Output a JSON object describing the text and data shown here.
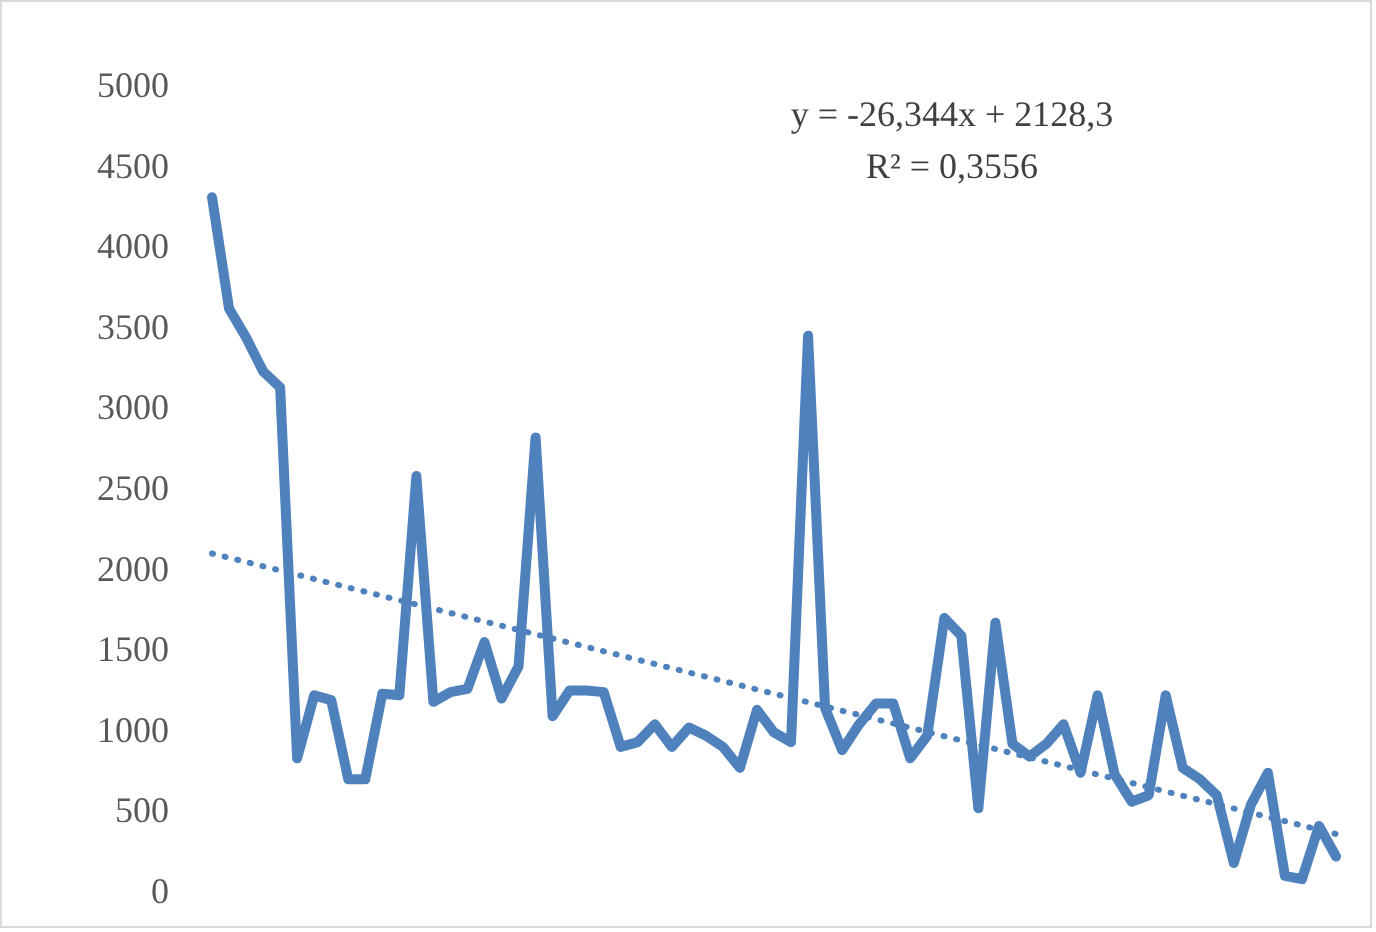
{
  "chart_data": {
    "type": "line",
    "categories": [
      null,
      null,
      null,
      null,
      null,
      null,
      null,
      null,
      null,
      null,
      null,
      null,
      null,
      null,
      null,
      null,
      null,
      null,
      null,
      null,
      null,
      null,
      null,
      null,
      null,
      null,
      null,
      null,
      null,
      null,
      null,
      null,
      null,
      null,
      null,
      null,
      null,
      null,
      null,
      null,
      null,
      null,
      null,
      null,
      null,
      null,
      null,
      null,
      null,
      null,
      null,
      null,
      null,
      null,
      null,
      null,
      null,
      null,
      null,
      null,
      null,
      null,
      null,
      null,
      null,
      null,
      null
    ],
    "series": [
      {
        "color": "#4f81bd",
        "line_style": "solid",
        "values": [
          4310,
          3620,
          3440,
          3230,
          3130,
          830,
          1220,
          1190,
          700,
          700,
          1230,
          1220,
          2580,
          1180,
          1240,
          1260,
          1550,
          1200,
          1400,
          2820,
          1090,
          1250,
          1250,
          1240,
          900,
          930,
          1040,
          900,
          1020,
          970,
          900,
          770,
          1130,
          990,
          930,
          3450,
          1140,
          880,
          1040,
          1170,
          1170,
          830,
          970,
          1700,
          1590,
          520,
          1670,
          920,
          840,
          920,
          1040,
          740,
          1220,
          730,
          560,
          600,
          1220,
          770,
          700,
          600,
          180,
          540,
          740,
          100,
          80,
          410,
          220
        ]
      },
      {
        "type": "line",
        "color": "#4f81bd",
        "line_style": "dotted",
        "values": [
          2100,
          null,
          null,
          null,
          null,
          null,
          null,
          null,
          null,
          null,
          null,
          null,
          null,
          null,
          null,
          null,
          null,
          null,
          null,
          null,
          null,
          null,
          null,
          null,
          null,
          null,
          null,
          null,
          null,
          null,
          null,
          null,
          null,
          null,
          null,
          null,
          null,
          null,
          null,
          null,
          null,
          null,
          null,
          null,
          null,
          null,
          null,
          null,
          null,
          null,
          null,
          null,
          null,
          null,
          null,
          null,
          null,
          null,
          null,
          null,
          null,
          null,
          null,
          null,
          null,
          null,
          360
        ]
      }
    ],
    "ylim": [
      0,
      5000
    ],
    "yticks": [
      0,
      500,
      1000,
      1500,
      2000,
      2500,
      3000,
      3500,
      4000,
      4500,
      5000
    ],
    "annotations": [
      "y = -26,344x + 2128,3",
      "R² = 0,3556"
    ]
  }
}
